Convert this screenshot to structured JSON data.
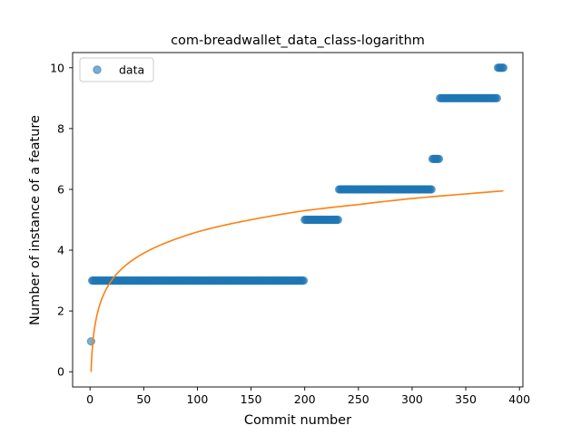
{
  "chart_data": {
    "type": "scatter",
    "title": "com-breadwallet_data_class-logarithm",
    "xlabel": "Commit number",
    "ylabel": "Number of instance of a feature",
    "xlim": [
      -16.2,
      403.2
    ],
    "ylim": [
      -0.5,
      10.5
    ],
    "x_ticks": [
      0,
      50,
      100,
      150,
      200,
      250,
      300,
      350,
      400
    ],
    "y_ticks": [
      0,
      2,
      4,
      6,
      8,
      10
    ],
    "grid": false,
    "legend": {
      "placement": "top-left",
      "entries": [
        "data"
      ]
    },
    "colors": {
      "data": "#1f77b4",
      "fit": "#ff7f0e"
    },
    "series": [
      {
        "name": "data",
        "kind": "scatter",
        "segments": [
          {
            "x_start": 1,
            "x_end": 1,
            "y": 1
          },
          {
            "x_start": 2,
            "x_end": 199,
            "y": 3
          },
          {
            "x_start": 200,
            "x_end": 231,
            "y": 5
          },
          {
            "x_start": 232,
            "x_end": 318,
            "y": 6
          },
          {
            "x_start": 319,
            "x_end": 325,
            "y": 7
          },
          {
            "x_start": 326,
            "x_end": 379,
            "y": 9
          },
          {
            "x_start": 380,
            "x_end": 385,
            "y": 10
          }
        ]
      },
      {
        "kind": "line",
        "model": "logarithm",
        "points": [
          [
            1,
            0
          ],
          [
            2,
            0.7
          ],
          [
            3,
            1.1
          ],
          [
            5,
            1.6
          ],
          [
            10,
            2.3
          ],
          [
            20,
            3.0
          ],
          [
            30,
            3.4
          ],
          [
            50,
            3.9
          ],
          [
            75,
            4.3
          ],
          [
            100,
            4.6
          ],
          [
            150,
            5.0
          ],
          [
            200,
            5.3
          ],
          [
            250,
            5.5
          ],
          [
            300,
            5.7
          ],
          [
            350,
            5.85
          ],
          [
            385,
            5.95
          ]
        ]
      }
    ]
  }
}
